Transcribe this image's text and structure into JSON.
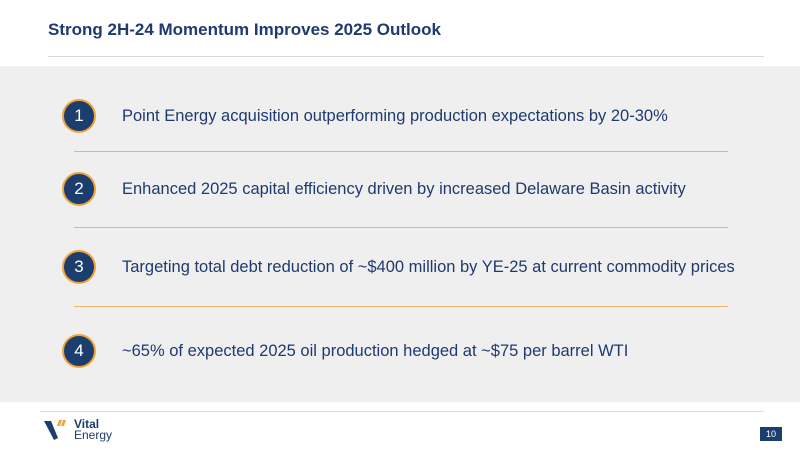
{
  "slide": {
    "title": "Strong 2H-24 Momentum Improves 2025 Outlook",
    "page_number": "10"
  },
  "items": [
    {
      "number": "1",
      "text": "Point Energy acquisition outperforming production expectations by 20-30%"
    },
    {
      "number": "2",
      "text": "Enhanced 2025 capital efficiency driven by increased Delaware Basin activity"
    },
    {
      "number": "3",
      "text": "Targeting total debt reduction of ~$400 million by YE-25 at current commodity prices"
    },
    {
      "number": "4",
      "text": "~65% of expected 2025 oil production hedged at ~$75 per barrel WTI"
    }
  ],
  "logo": {
    "line1": "Vital",
    "line2": "Energy"
  },
  "colors": {
    "navy": "#1c3e6f",
    "orange_accent": "#f0a53a",
    "panel_bg": "#efefef"
  }
}
